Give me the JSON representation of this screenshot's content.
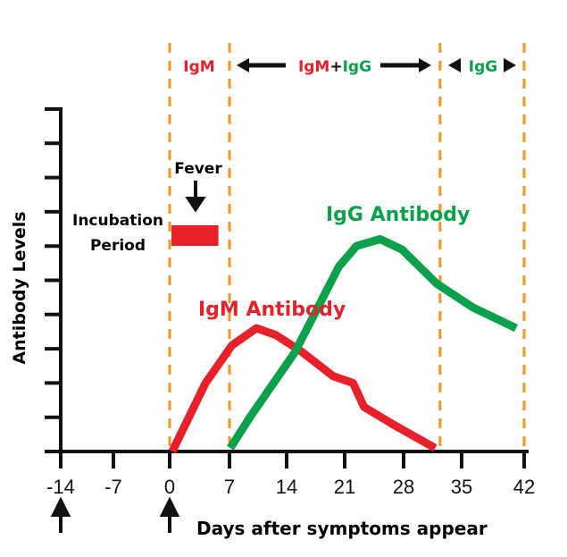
{
  "chart_data": {
    "type": "line",
    "title": "",
    "xlabel": "Days after symptoms appear",
    "ylabel": "Antibody Levels",
    "xticks": [
      -14,
      -7,
      0,
      7,
      14,
      21,
      28,
      35,
      42
    ],
    "xlim": [
      -14,
      42
    ],
    "ylim": [
      0,
      10
    ],
    "yticks_count": 10,
    "series": [
      {
        "name": "IgM Antibody",
        "color": "#e8202a",
        "x": [
          0.3,
          4.2,
          7.3,
          10.3,
          12.7,
          15.9,
          19.6,
          22,
          23.3,
          26.7,
          31.8
        ],
        "y": [
          0,
          2.0,
          3.1,
          3.6,
          3.4,
          2.9,
          2.2,
          2.0,
          1.3,
          0.8,
          0.1
        ]
      },
      {
        "name": "IgG Antibody",
        "color": "#0aa14b",
        "x": [
          7.1,
          9.5,
          15,
          20.3,
          22.4,
          25.2,
          27.8,
          32,
          36.3,
          41.1
        ],
        "y": [
          0.1,
          1.0,
          2.9,
          5.4,
          6.0,
          6.2,
          5.9,
          4.9,
          4.2,
          3.6
        ]
      }
    ],
    "phase_boundaries": [
      0,
      7,
      32.4,
      42
    ],
    "phases": [
      {
        "label": "IgM",
        "color": "#e8202a"
      },
      {
        "label_a": "IgM",
        "sep": "+",
        "label_b": "IgG"
      },
      {
        "label": "IgG",
        "color": "#0aa14b"
      }
    ],
    "annotations": {
      "incubation": [
        "Incubation",
        "Period"
      ],
      "fever": "Fever",
      "fever_period_days": [
        0,
        5.5
      ],
      "arrow_days": [
        -14,
        0
      ]
    },
    "colors": {
      "igm": "#e8202a",
      "igg": "#0aa14b",
      "phase_line": "#f7941d",
      "axis": "#111111"
    }
  }
}
